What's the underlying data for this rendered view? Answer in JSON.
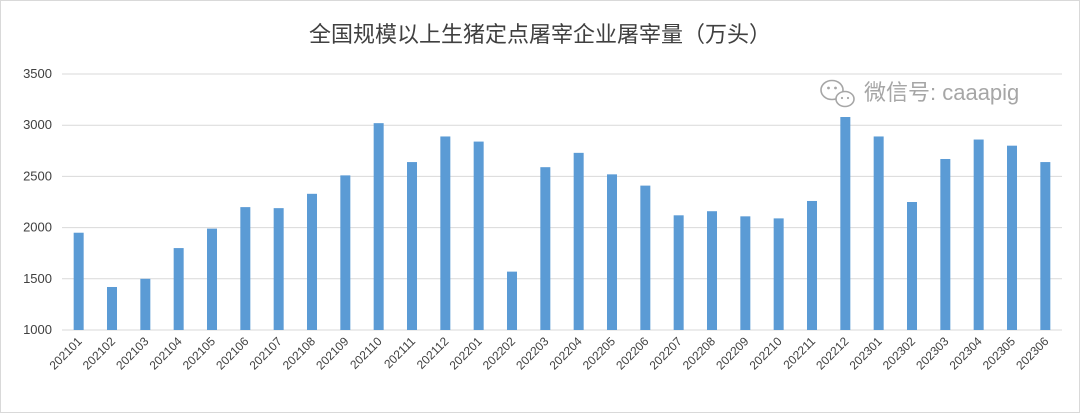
{
  "chart_data": {
    "type": "bar",
    "title": "全国规模以上生猪定点屠宰企业屠宰量（万头）",
    "xlabel": "",
    "ylabel": "",
    "ylim": [
      1000,
      3500
    ],
    "yticks": [
      1000,
      1500,
      2000,
      2500,
      3000,
      3500
    ],
    "grid": true,
    "bar_color": "#5b9bd5",
    "categories": [
      "202101",
      "202102",
      "202103",
      "202104",
      "202105",
      "202106",
      "202107",
      "202108",
      "202109",
      "202110",
      "202111",
      "202112",
      "202201",
      "202202",
      "202203",
      "202204",
      "202205",
      "202206",
      "202207",
      "202208",
      "202209",
      "202210",
      "202211",
      "202212",
      "202301",
      "202302",
      "202303",
      "202304",
      "202305",
      "202306"
    ],
    "values": [
      1950,
      1420,
      1500,
      1800,
      1990,
      2200,
      2190,
      2330,
      2510,
      3020,
      2640,
      2890,
      2840,
      1570,
      2590,
      2730,
      2520,
      2410,
      2120,
      2160,
      2110,
      2090,
      2260,
      3080,
      2890,
      2250,
      2670,
      2860,
      2800,
      2640
    ]
  },
  "watermark": {
    "text": "微信号: caaapig",
    "icon": "wechat-icon"
  }
}
